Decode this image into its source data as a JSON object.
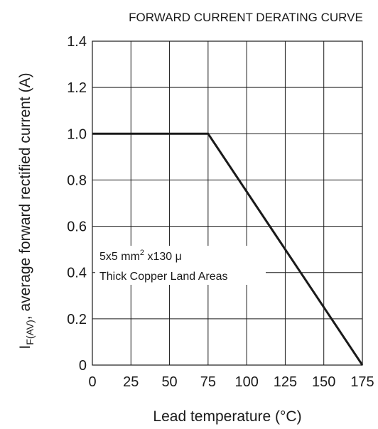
{
  "chart_data": {
    "type": "line",
    "title": "FORWARD CURRENT DERATING CURVE",
    "xlabel": "Lead temperature (°C)",
    "ylabel": {
      "symbol": "I",
      "subscript": "F(AV)",
      "text": ", average forward rectified current (A)"
    },
    "xlim": [
      0,
      175
    ],
    "ylim": [
      0,
      1.4
    ],
    "x_ticks": [
      0,
      25,
      50,
      75,
      100,
      125,
      150,
      175
    ],
    "x_tick_labels": [
      "0",
      "25",
      "50",
      "75",
      "100",
      "125",
      "150",
      "175"
    ],
    "y_ticks": [
      0,
      0.2,
      0.4,
      0.6,
      0.8,
      1.0,
      1.2,
      1.4
    ],
    "y_tick_labels": [
      "0",
      "0.2",
      "0.4",
      "0.6",
      "0.8",
      "1.0",
      "1.2",
      "1.4"
    ],
    "grid": true,
    "series": [
      {
        "x": [
          0,
          75,
          175
        ],
        "y": [
          1.0,
          1.0,
          0
        ]
      }
    ],
    "annotation": {
      "line1": "5x5 mm",
      "sup": "2",
      "line1_rest": " x130 μ",
      "line2": "Thick Copper Land Areas"
    },
    "colors": {
      "curve": "#1a1a1a",
      "grid": "#1a1a1a"
    }
  }
}
